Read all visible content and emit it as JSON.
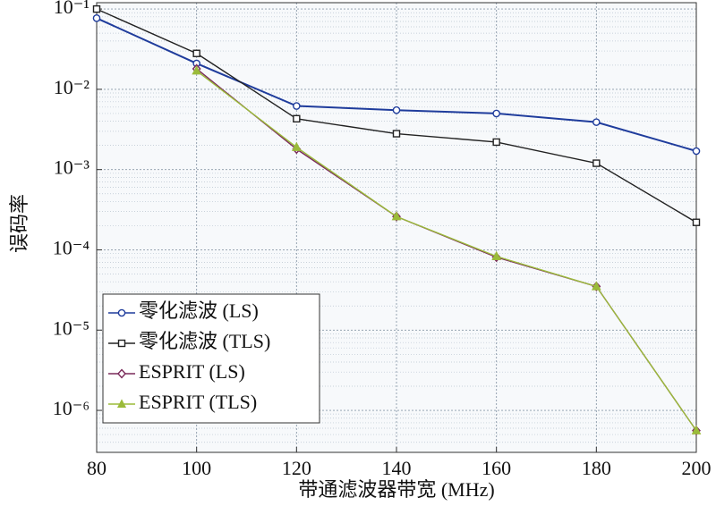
{
  "chart_data": {
    "type": "line",
    "xlabel": "带通滤波器带宽 (MHz)",
    "ylabel": "误码率",
    "x": [
      80,
      100,
      120,
      140,
      160,
      180,
      200
    ],
    "xlim": [
      80,
      200
    ],
    "xticks": [
      80,
      100,
      120,
      140,
      160,
      180,
      200
    ],
    "ylim": [
      3e-07,
      0.12
    ],
    "log_y": true,
    "yticks": [
      {
        "value": 0.1,
        "label": "10⁻¹"
      },
      {
        "value": 0.01,
        "label": "10⁻²"
      },
      {
        "value": 0.001,
        "label": "10⁻³"
      },
      {
        "value": 0.0001,
        "label": "10⁻⁴"
      },
      {
        "value": 1e-05,
        "label": "10⁻⁵"
      },
      {
        "value": 1e-06,
        "label": "10⁻⁶"
      }
    ],
    "grid": true,
    "legend": "lower left",
    "series": [
      {
        "name": "零化滤波 (LS)",
        "color": "#1f3c9c",
        "marker": "circle",
        "values": [
          0.077,
          0.021,
          0.0062,
          0.0055,
          0.005,
          0.0039,
          0.0017
        ]
      },
      {
        "name": "零化滤波 (TLS)",
        "color": "#222222",
        "marker": "square",
        "values": [
          0.1,
          0.028,
          0.0043,
          0.0028,
          0.0022,
          0.0012,
          0.00022
        ]
      },
      {
        "name": "ESPRIT (LS)",
        "color": "#7a2a5a",
        "marker": "diamond",
        "values": [
          null,
          0.018,
          0.0018,
          0.00026,
          8.1e-05,
          3.5e-05,
          5.6e-07
        ]
      },
      {
        "name": "ESPRIT (TLS)",
        "color": "#9bbb3a",
        "marker": "triangle",
        "values": [
          null,
          0.017,
          0.0019,
          0.00026,
          8.3e-05,
          3.5e-05,
          5.6e-07
        ]
      }
    ]
  }
}
